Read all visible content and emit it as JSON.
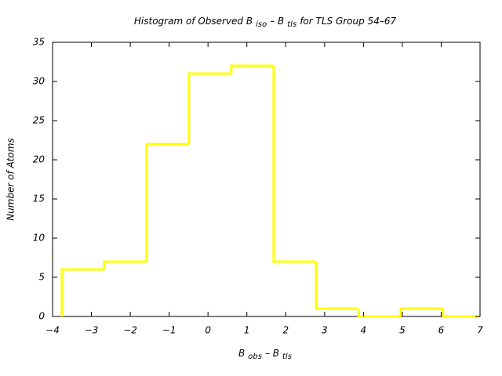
{
  "chart_data": {
    "type": "histogram",
    "title": [
      "Histogram of Observed B",
      "iso",
      "– B",
      "tls",
      "for TLS Group 54–67"
    ],
    "xlabel": [
      "B",
      "obs",
      "– B",
      "tls"
    ],
    "ylabel": "Number of Atoms",
    "bins": [
      -3.76,
      -2.67,
      -1.58,
      -0.49,
      0.6,
      1.69,
      2.78,
      3.87,
      4.96,
      6.05,
      7.14
    ],
    "values": [
      6,
      7,
      22,
      31,
      32,
      7,
      1,
      0,
      1,
      0
    ],
    "color": "#ffff00",
    "xlim": [
      -4,
      7
    ],
    "xticks": [
      {
        "value": -4,
        "label": "−4"
      },
      {
        "value": -3,
        "label": "−3"
      },
      {
        "value": -2,
        "label": "−2"
      },
      {
        "value": -1,
        "label": "−1"
      },
      0,
      1,
      2,
      3,
      4,
      5,
      6,
      7
    ],
    "ylim": [
      0,
      35
    ],
    "yticks": [
      0,
      5,
      10,
      15,
      20,
      25,
      30,
      35
    ]
  }
}
